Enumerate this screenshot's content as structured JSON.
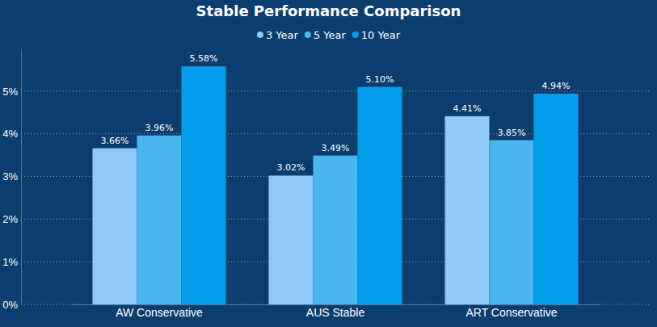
{
  "chart_data": {
    "type": "bar",
    "title": "Stable Performance Comparison",
    "categories": [
      "AW Conservative",
      "AUS Stable",
      "ART Conservative"
    ],
    "series": [
      {
        "name": "3 Year",
        "color": "#90c9f8",
        "values": [
          3.66,
          3.02,
          4.41
        ],
        "value_labels": [
          "3.66%",
          "3.02%",
          "4.41%"
        ]
      },
      {
        "name": "5 Year",
        "color": "#4bb5f2",
        "values": [
          3.96,
          3.49,
          3.85
        ],
        "value_labels": [
          "3.96%",
          "3.49%",
          "3.85%"
        ]
      },
      {
        "name": "10 Year",
        "color": "#039ee9",
        "values": [
          5.58,
          5.1,
          4.94
        ],
        "value_labels": [
          "5.58%",
          "5.10%",
          "4.94%"
        ]
      }
    ],
    "ylim": [
      0,
      6
    ],
    "yticks": [
      {
        "value": 0,
        "label": "0%"
      },
      {
        "value": 1,
        "label": "1%"
      },
      {
        "value": 2,
        "label": "2%"
      },
      {
        "value": 3,
        "label": "3%"
      },
      {
        "value": 4,
        "label": "4%"
      },
      {
        "value": 5,
        "label": "5%"
      }
    ],
    "grid": true,
    "legend": "top",
    "data_labels": true
  }
}
